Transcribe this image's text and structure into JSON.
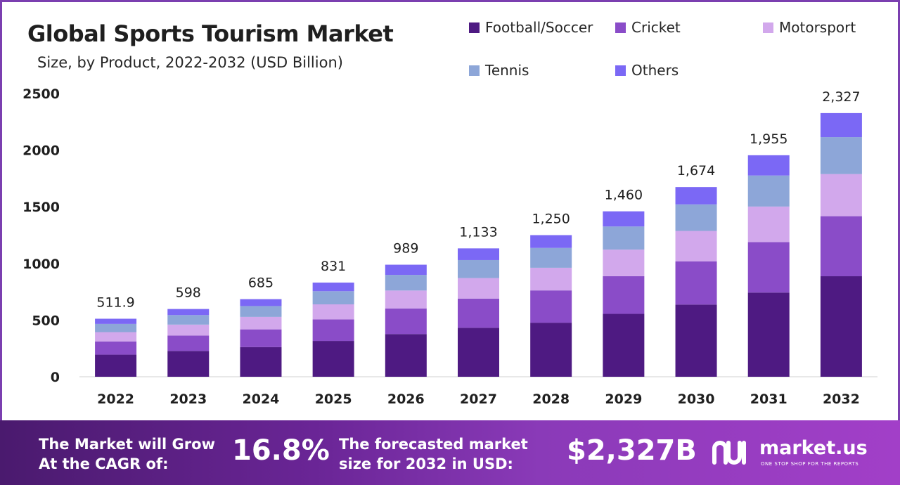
{
  "chart_data": {
    "type": "bar",
    "stacked": true,
    "title": "Global Sports Tourism Market",
    "subtitle": "Size, by Product, 2022-2032 (USD Billion)",
    "categories": [
      "2022",
      "2023",
      "2024",
      "2025",
      "2026",
      "2027",
      "2028",
      "2029",
      "2030",
      "2031",
      "2032"
    ],
    "totals_labels": [
      "511.9",
      "598",
      "685",
      "831",
      "989",
      "1,133",
      "1,250",
      "1,460",
      "1,674",
      "1,955",
      "2,327"
    ],
    "series": [
      {
        "name": "Football/Soccer",
        "color": "#4e1a82",
        "values": [
          195,
          228,
          262,
          316,
          377,
          432,
          477,
          555,
          637,
          743,
          887
        ]
      },
      {
        "name": "Cricket",
        "color": "#8a4cc8",
        "values": [
          117,
          136,
          156,
          190,
          226,
          258,
          285,
          333,
          382,
          446,
          530
        ]
      },
      {
        "name": "Motorsport",
        "color": "#d2a8ec",
        "values": [
          82,
          96,
          110,
          133,
          158,
          181,
          200,
          234,
          268,
          313,
          372
        ]
      },
      {
        "name": "Tennis",
        "color": "#8da6d8",
        "values": [
          72,
          84,
          96,
          116,
          138,
          159,
          175,
          204,
          234,
          274,
          326
        ]
      },
      {
        "name": "Others",
        "color": "#7b68f5",
        "values": [
          46,
          54,
          61,
          76,
          90,
          103,
          113,
          134,
          153,
          179,
          212
        ]
      }
    ],
    "yticks": [
      "0",
      "500",
      "1000",
      "1500",
      "2000",
      "2500"
    ],
    "ylim": [
      0,
      2500
    ],
    "legend_position": "top-right",
    "grid": false
  },
  "footer": {
    "cagr_text_line1": "The Market will Grow",
    "cagr_text_line2": "At the CAGR of:",
    "cagr_value": "16.8%",
    "forecast_text_line1": "The forecasted market",
    "forecast_text_line2": "size for 2032 in USD:",
    "forecast_value": "$2,327B",
    "brand_name": "market.us",
    "brand_tagline": "ONE STOP SHOP FOR THE REPORTS"
  }
}
